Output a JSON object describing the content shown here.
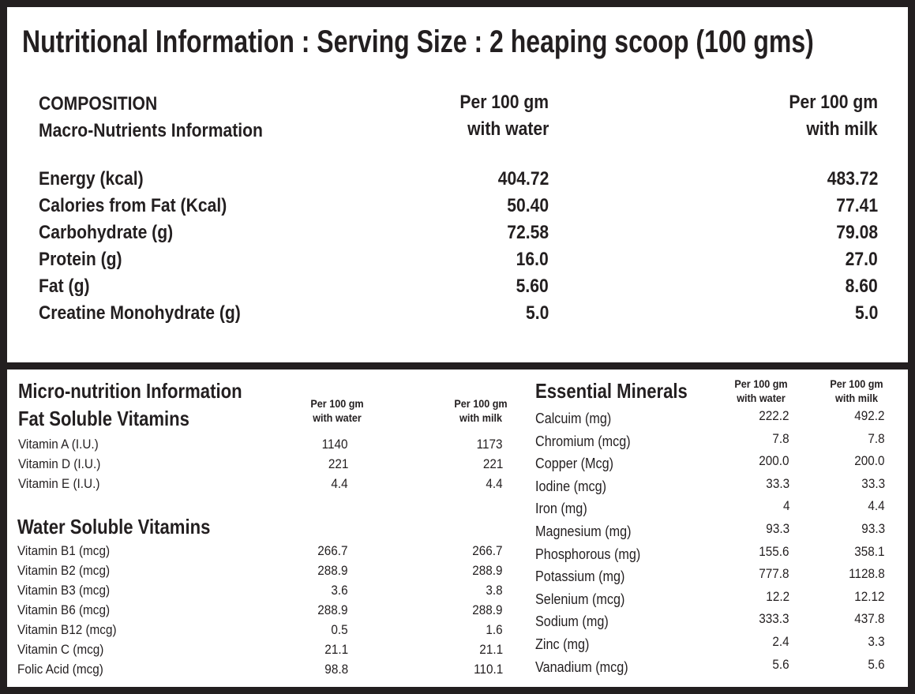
{
  "title": "Nutritional Information : Serving Size : 2 heaping scoop (100 gms)",
  "macro": {
    "heading1": "COMPOSITION",
    "heading2": "Macro-Nutrients Information",
    "col_water": [
      "Per 100 gm",
      "with water"
    ],
    "col_milk": [
      "Per 100 gm",
      "with milk"
    ],
    "rows": [
      {
        "label": "Energy (kcal)",
        "water": "404.72",
        "milk": "483.72"
      },
      {
        "label": "Calories from Fat (Kcal)",
        "water": "50.40",
        "milk": "77.41"
      },
      {
        "label": "Carbohydrate  (g)",
        "water": "72.58",
        "milk": "79.08"
      },
      {
        "label": "Protein (g)",
        "water": "16.0",
        "milk": "27.0"
      },
      {
        "label": "Fat (g)",
        "water": "5.60",
        "milk": "8.60"
      },
      {
        "label": "Creatine Monohydrate (g)",
        "water": "5.0",
        "milk": "5.0"
      }
    ]
  },
  "micro": {
    "heading": "Micro-nutrition Information",
    "col_water": [
      "Per 100 gm",
      "with water"
    ],
    "col_milk": [
      "Per 100 gm",
      "with milk"
    ],
    "fat_soluble": {
      "heading": "Fat Soluble Vitamins",
      "rows": [
        {
          "label": "Vitamin A (I.U.)",
          "water": "1140",
          "milk": "1173"
        },
        {
          "label": "Vitamin D (I.U.)",
          "water": "221",
          "milk": "221"
        },
        {
          "label": "Vitamin E (I.U.)",
          "water": "4.4",
          "milk": "4.4"
        }
      ]
    },
    "water_soluble": {
      "heading": "Water Soluble Vitamins",
      "rows": [
        {
          "label": "Vitamin B1 (mcg)",
          "water": "266.7",
          "milk": "266.7"
        },
        {
          "label": "Vitamin B2 (mcg)",
          "water": "288.9",
          "milk": "288.9"
        },
        {
          "label": "Vitamin B3 (mcg)",
          "water": "3.6",
          "milk": "3.8"
        },
        {
          "label": "Vitamin B6 (mcg)",
          "water": "288.9",
          "milk": "288.9"
        },
        {
          "label": "Vitamin B12 (mcg)",
          "water": "0.5",
          "milk": "1.6"
        },
        {
          "label": "Vitamin C (mcg)",
          "water": "21.1",
          "milk": "21.1"
        },
        {
          "label": "Folic Acid (mcg)",
          "water": "98.8",
          "milk": "110.1"
        }
      ]
    }
  },
  "minerals": {
    "heading": "Essential Minerals",
    "col_water": [
      "Per 100 gm",
      "with water"
    ],
    "col_milk": [
      "Per 100 gm",
      "with milk"
    ],
    "rows": [
      {
        "label": "Calcuim (mg)",
        "water": "222.2",
        "milk": "492.2"
      },
      {
        "label": "Chromium (mcg)",
        "water": "7.8",
        "milk": "7.8"
      },
      {
        "label": "Copper (Mcg)",
        "water": "200.0",
        "milk": "200.0"
      },
      {
        "label": "Iodine (mcg)",
        "water": "33.3",
        "milk": "33.3"
      },
      {
        "label": "Iron (mg)",
        "water": "4",
        "milk": "4.4"
      },
      {
        "label": "Magnesium (mg)",
        "water": "93.3",
        "milk": "93.3"
      },
      {
        "label": "Phosphorous (mg)",
        "water": "155.6",
        "milk": "358.1"
      },
      {
        "label": "Potassium (mg)",
        "water": "777.8",
        "milk": "1128.8"
      },
      {
        "label": "Selenium (mcg)",
        "water": "12.2",
        "milk": "12.12"
      },
      {
        "label": "Sodium (mg)",
        "water": "333.3",
        "milk": "437.8"
      },
      {
        "label": "Zinc (mg)",
        "water": "2.4",
        "milk": "3.3"
      },
      {
        "label": "Vanadium (mcg)",
        "water": "5.6",
        "milk": "5.6"
      }
    ]
  },
  "colors": {
    "border": "#231f20",
    "background": "#ffffff",
    "text": "#231f20"
  }
}
